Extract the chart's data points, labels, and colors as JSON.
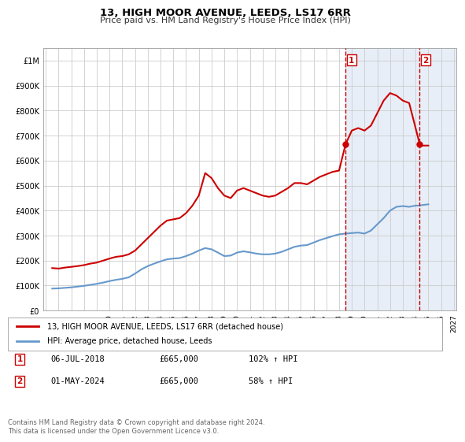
{
  "title": "13, HIGH MOOR AVENUE, LEEDS, LS17 6RR",
  "subtitle": "Price paid vs. HM Land Registry's House Price Index (HPI)",
  "legend_label_red": "13, HIGH MOOR AVENUE, LEEDS, LS17 6RR (detached house)",
  "legend_label_blue": "HPI: Average price, detached house, Leeds",
  "footnote": "Contains HM Land Registry data © Crown copyright and database right 2024.\nThis data is licensed under the Open Government Licence v3.0.",
  "table_rows": [
    {
      "num": "1",
      "date": "06-JUL-2018",
      "price": "£665,000",
      "hpi": "102% ↑ HPI"
    },
    {
      "num": "2",
      "date": "01-MAY-2024",
      "price": "£665,000",
      "hpi": "58% ↑ HPI"
    }
  ],
  "vline_years": [
    2018.51,
    2024.33
  ],
  "sale_points": [
    {
      "year": 2018.51,
      "price": 665000
    },
    {
      "year": 2024.33,
      "price": 665000
    }
  ],
  "red_line": [
    [
      1995.5,
      170000
    ],
    [
      1996.0,
      168000
    ],
    [
      1996.5,
      172000
    ],
    [
      1997.0,
      175000
    ],
    [
      1997.5,
      178000
    ],
    [
      1998.0,
      182000
    ],
    [
      1998.5,
      188000
    ],
    [
      1999.0,
      192000
    ],
    [
      1999.5,
      200000
    ],
    [
      2000.0,
      208000
    ],
    [
      2000.5,
      215000
    ],
    [
      2001.0,
      218000
    ],
    [
      2001.5,
      225000
    ],
    [
      2002.0,
      240000
    ],
    [
      2002.5,
      265000
    ],
    [
      2003.0,
      290000
    ],
    [
      2003.5,
      315000
    ],
    [
      2004.0,
      340000
    ],
    [
      2004.5,
      360000
    ],
    [
      2005.0,
      365000
    ],
    [
      2005.5,
      370000
    ],
    [
      2006.0,
      390000
    ],
    [
      2006.5,
      420000
    ],
    [
      2007.0,
      460000
    ],
    [
      2007.5,
      550000
    ],
    [
      2008.0,
      530000
    ],
    [
      2008.5,
      490000
    ],
    [
      2009.0,
      460000
    ],
    [
      2009.5,
      450000
    ],
    [
      2010.0,
      480000
    ],
    [
      2010.5,
      490000
    ],
    [
      2011.0,
      480000
    ],
    [
      2011.5,
      470000
    ],
    [
      2012.0,
      460000
    ],
    [
      2012.5,
      455000
    ],
    [
      2013.0,
      460000
    ],
    [
      2013.5,
      475000
    ],
    [
      2014.0,
      490000
    ],
    [
      2014.5,
      510000
    ],
    [
      2015.0,
      510000
    ],
    [
      2015.5,
      505000
    ],
    [
      2016.0,
      520000
    ],
    [
      2016.5,
      535000
    ],
    [
      2017.0,
      545000
    ],
    [
      2017.5,
      555000
    ],
    [
      2018.0,
      560000
    ],
    [
      2018.51,
      665000
    ],
    [
      2019.0,
      720000
    ],
    [
      2019.5,
      730000
    ],
    [
      2020.0,
      720000
    ],
    [
      2020.5,
      740000
    ],
    [
      2021.0,
      790000
    ],
    [
      2021.5,
      840000
    ],
    [
      2022.0,
      870000
    ],
    [
      2022.5,
      860000
    ],
    [
      2023.0,
      840000
    ],
    [
      2023.5,
      830000
    ],
    [
      2024.33,
      665000
    ],
    [
      2024.5,
      660000
    ],
    [
      2025.0,
      660000
    ]
  ],
  "blue_line": [
    [
      1995.5,
      88000
    ],
    [
      1996.0,
      89000
    ],
    [
      1996.5,
      91000
    ],
    [
      1997.0,
      93000
    ],
    [
      1997.5,
      96000
    ],
    [
      1998.0,
      99000
    ],
    [
      1998.5,
      103000
    ],
    [
      1999.0,
      107000
    ],
    [
      1999.5,
      112000
    ],
    [
      2000.0,
      118000
    ],
    [
      2000.5,
      123000
    ],
    [
      2001.0,
      127000
    ],
    [
      2001.5,
      133000
    ],
    [
      2002.0,
      148000
    ],
    [
      2002.5,
      165000
    ],
    [
      2003.0,
      178000
    ],
    [
      2003.5,
      188000
    ],
    [
      2004.0,
      197000
    ],
    [
      2004.5,
      205000
    ],
    [
      2005.0,
      208000
    ],
    [
      2005.5,
      210000
    ],
    [
      2006.0,
      218000
    ],
    [
      2006.5,
      228000
    ],
    [
      2007.0,
      240000
    ],
    [
      2007.5,
      250000
    ],
    [
      2008.0,
      245000
    ],
    [
      2008.5,
      232000
    ],
    [
      2009.0,
      218000
    ],
    [
      2009.5,
      220000
    ],
    [
      2010.0,
      232000
    ],
    [
      2010.5,
      237000
    ],
    [
      2011.0,
      233000
    ],
    [
      2011.5,
      228000
    ],
    [
      2012.0,
      225000
    ],
    [
      2012.5,
      225000
    ],
    [
      2013.0,
      228000
    ],
    [
      2013.5,
      235000
    ],
    [
      2014.0,
      245000
    ],
    [
      2014.5,
      255000
    ],
    [
      2015.0,
      260000
    ],
    [
      2015.5,
      262000
    ],
    [
      2016.0,
      272000
    ],
    [
      2016.5,
      282000
    ],
    [
      2017.0,
      290000
    ],
    [
      2017.5,
      298000
    ],
    [
      2018.0,
      305000
    ],
    [
      2018.5,
      308000
    ],
    [
      2019.0,
      310000
    ],
    [
      2019.5,
      312000
    ],
    [
      2020.0,
      308000
    ],
    [
      2020.5,
      320000
    ],
    [
      2021.0,
      345000
    ],
    [
      2021.5,
      370000
    ],
    [
      2022.0,
      400000
    ],
    [
      2022.5,
      415000
    ],
    [
      2023.0,
      418000
    ],
    [
      2023.5,
      415000
    ],
    [
      2024.0,
      420000
    ],
    [
      2024.33,
      420000
    ],
    [
      2024.5,
      422000
    ],
    [
      2025.0,
      425000
    ]
  ],
  "ylim": [
    0,
    1050000
  ],
  "xlim": [
    1994.8,
    2027.2
  ],
  "yticks": [
    0,
    100000,
    200000,
    300000,
    400000,
    500000,
    600000,
    700000,
    800000,
    900000,
    1000000
  ],
  "ytick_labels": [
    "£0",
    "£100K",
    "£200K",
    "£300K",
    "£400K",
    "£500K",
    "£600K",
    "£700K",
    "£800K",
    "£900K",
    "£1M"
  ],
  "xticks": [
    1995,
    1996,
    1997,
    1998,
    1999,
    2000,
    2001,
    2002,
    2003,
    2004,
    2005,
    2006,
    2007,
    2008,
    2009,
    2010,
    2011,
    2012,
    2013,
    2014,
    2015,
    2016,
    2017,
    2018,
    2019,
    2020,
    2021,
    2022,
    2023,
    2024,
    2025,
    2026,
    2027
  ],
  "hatch_region_start": 2018.51,
  "hatch_region_end": 2027.2,
  "red_color": "#cc0000",
  "blue_color": "#6699cc",
  "vline_color": "#cc0000",
  "bg_color": "#ffffff",
  "grid_color": "#cccccc",
  "hatch_color": "#dde8f5"
}
